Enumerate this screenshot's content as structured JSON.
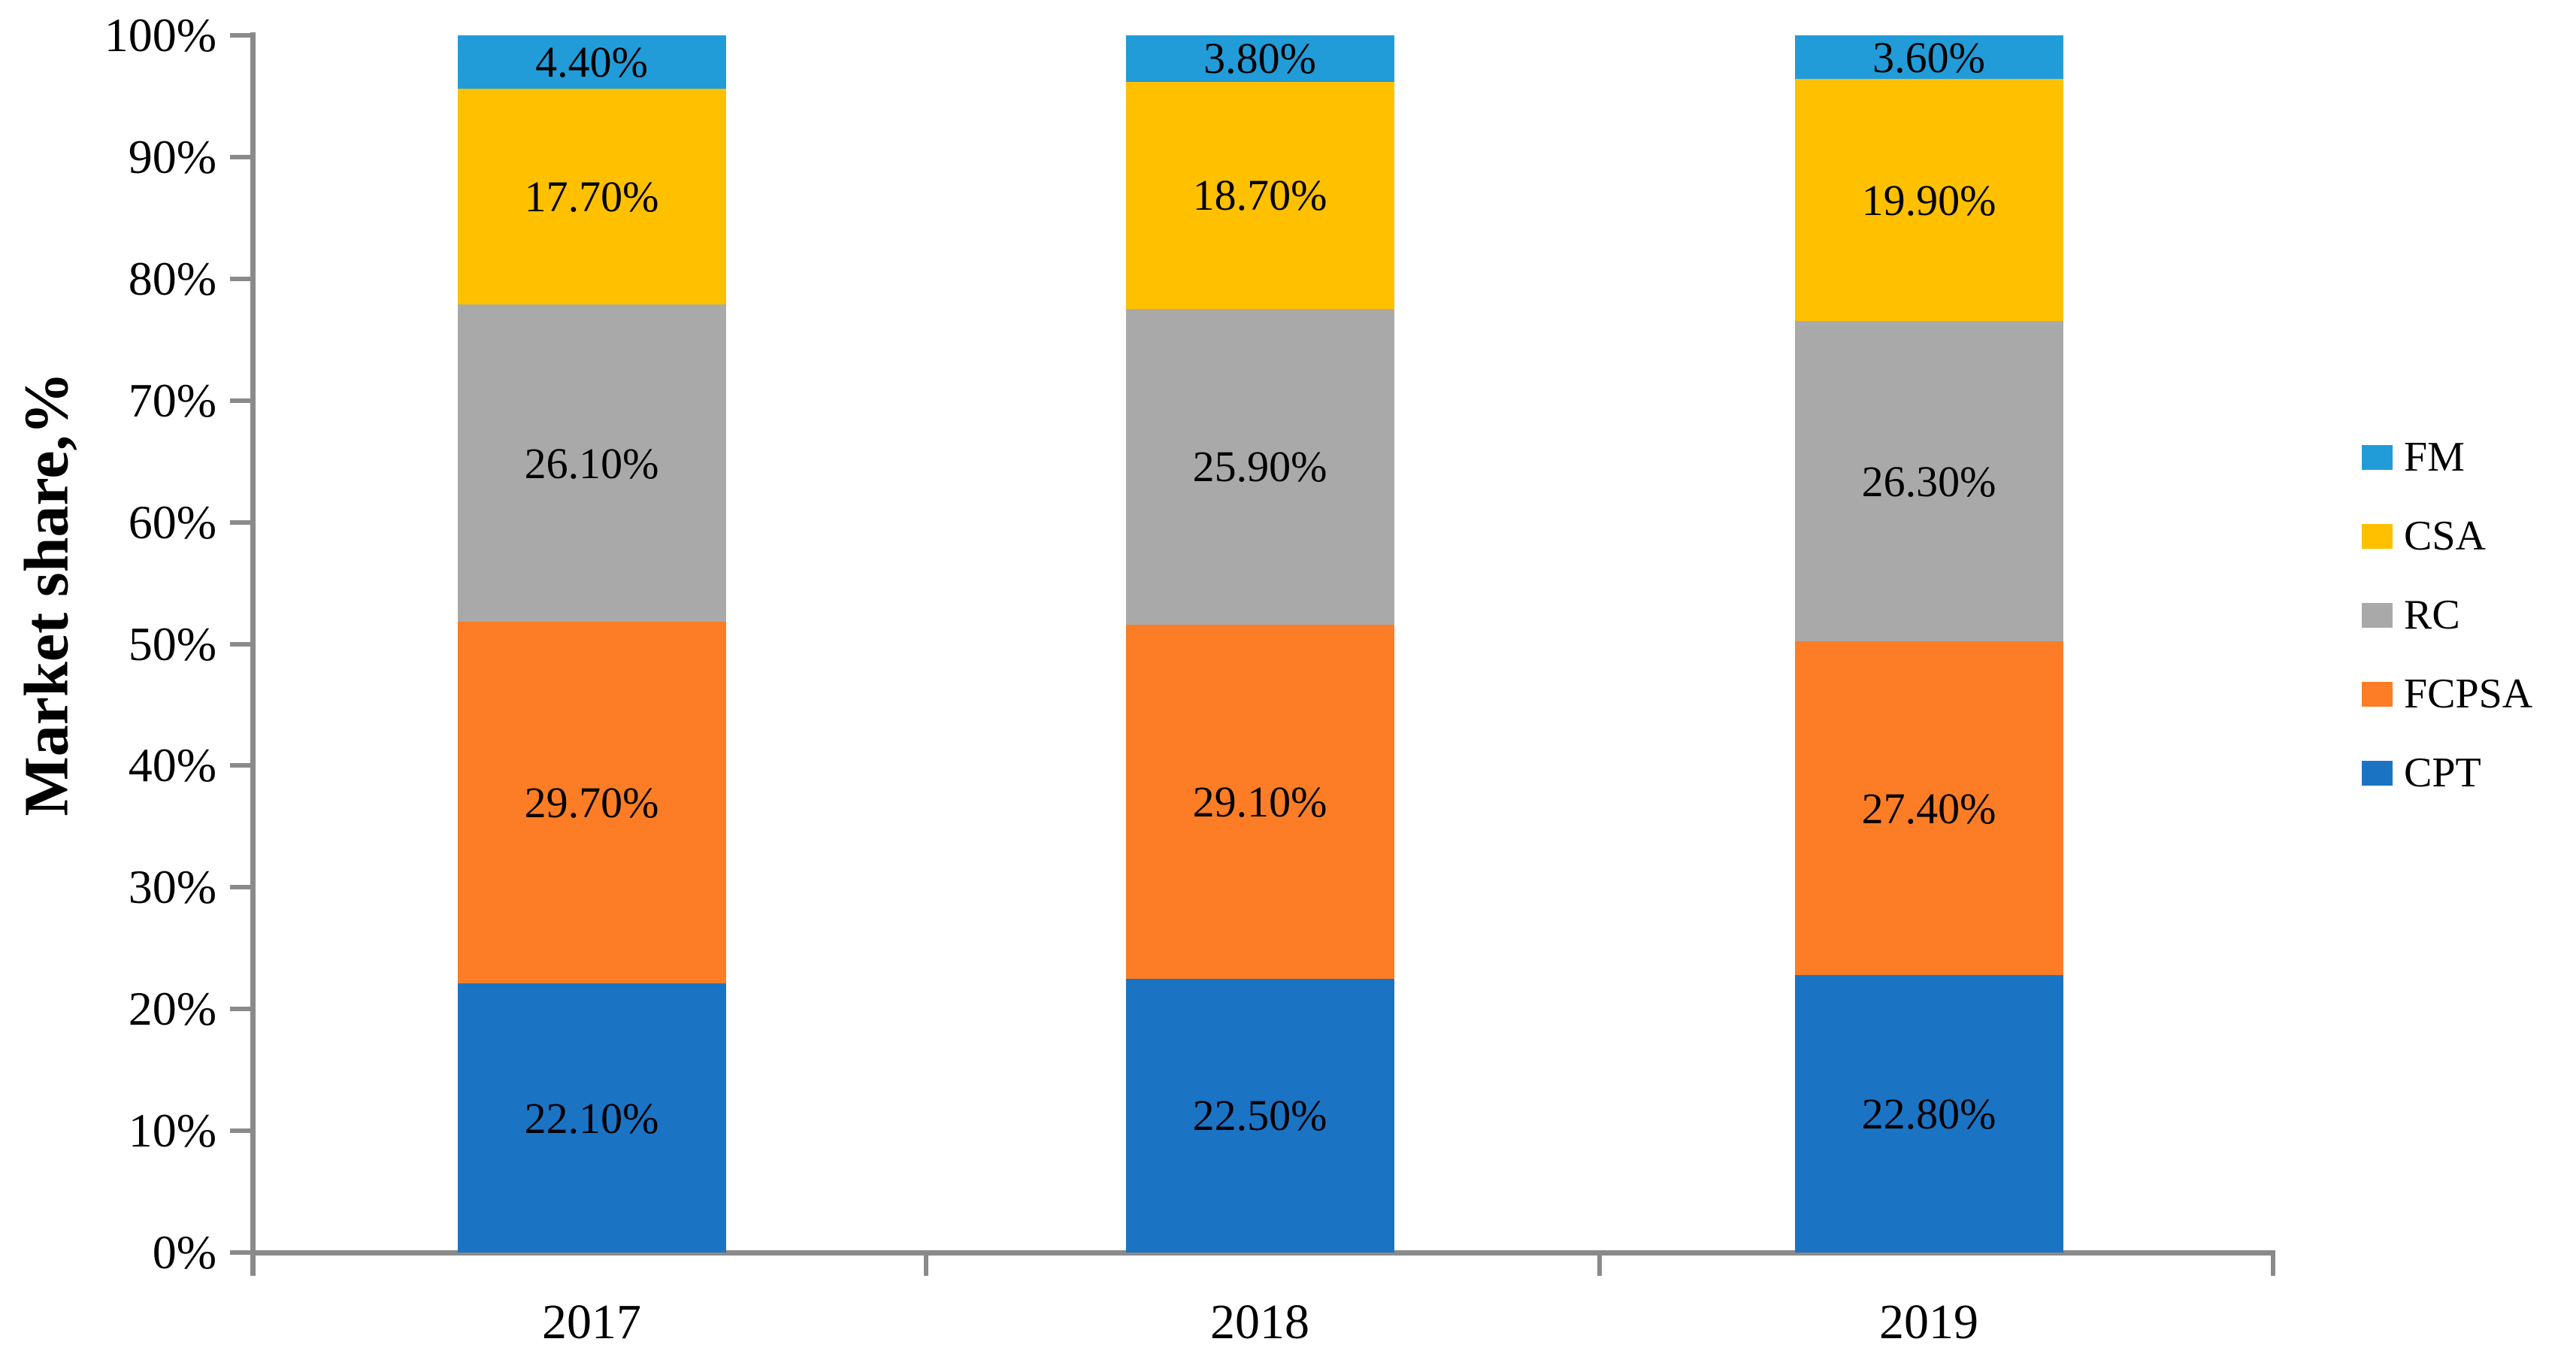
{
  "colors": {
    "background": "#FFFFFF",
    "axis": "#8A8A8A",
    "text": "#000000"
  },
  "chart_data": {
    "type": "bar",
    "stacked": true,
    "title": "",
    "xlabel": "",
    "ylabel": "Market share,%",
    "ylim": [
      0,
      100
    ],
    "ytick_labels": [
      "0%",
      "10%",
      "20%",
      "30%",
      "40%",
      "50%",
      "60%",
      "70%",
      "80%",
      "90%",
      "100%"
    ],
    "grid": false,
    "categories": [
      "2017",
      "2018",
      "2019"
    ],
    "series": [
      {
        "name": "CPT",
        "color": "#1B73C4",
        "values": [
          22.1,
          22.5,
          22.8
        ],
        "labels": [
          "22.10%",
          "22.50%",
          "22.80%"
        ]
      },
      {
        "name": "FCPSA",
        "color": "#FC7D25",
        "values": [
          29.7,
          29.1,
          27.4
        ],
        "labels": [
          "29.70%",
          "29.10%",
          "27.40%"
        ]
      },
      {
        "name": "RC",
        "color": "#A9A9A9",
        "values": [
          26.1,
          25.9,
          26.3
        ],
        "labels": [
          "26.10%",
          "25.90%",
          "26.30%"
        ]
      },
      {
        "name": "CSA",
        "color": "#FFC000",
        "values": [
          17.7,
          18.7,
          19.9
        ],
        "labels": [
          "17.70%",
          "18.70%",
          "19.90%"
        ]
      },
      {
        "name": "FM",
        "color": "#219CD8",
        "values": [
          4.4,
          3.8,
          3.6
        ],
        "labels": [
          "4.40%",
          "3.80%",
          "3.60%"
        ]
      }
    ],
    "legend": {
      "position": "right",
      "items": [
        "FM",
        "CSA",
        "RC",
        "FCPSA",
        "CPT"
      ]
    }
  }
}
